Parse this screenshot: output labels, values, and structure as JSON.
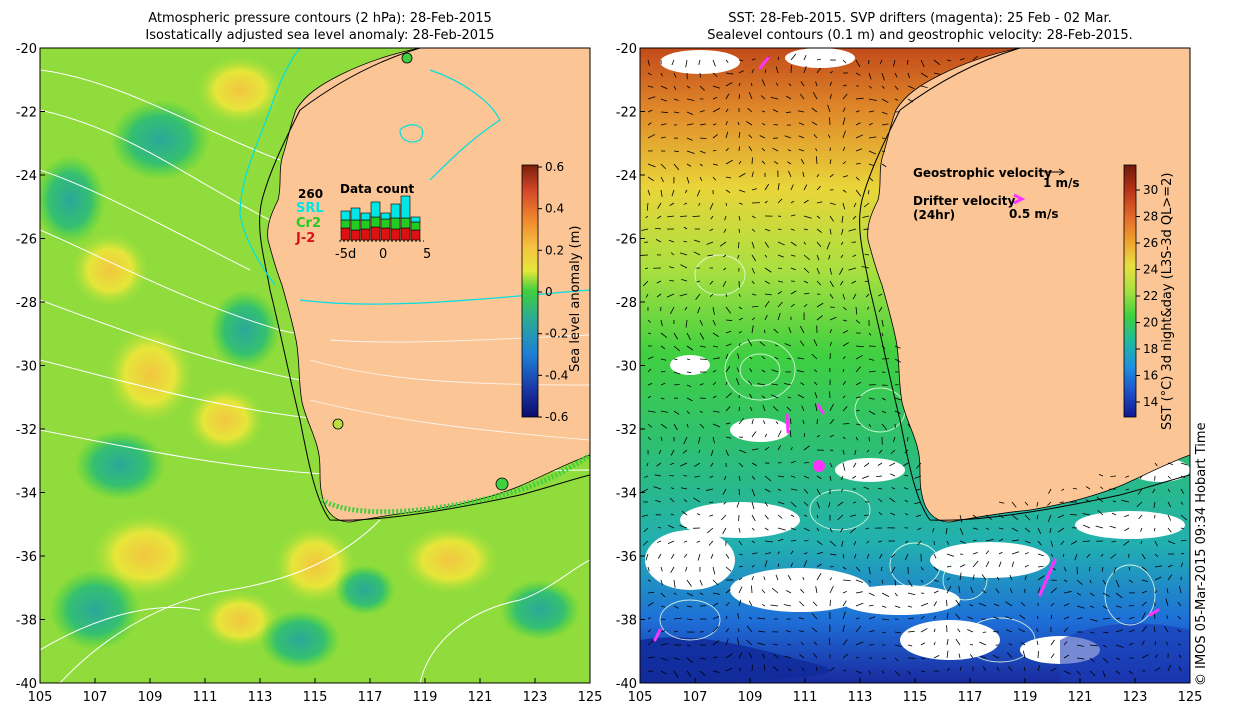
{
  "left_panel": {
    "title_line1": "Atmospheric pressure contours (2 hPa): 28-Feb-2015",
    "title_line2": "Isostatically adjusted sea level anomaly: 28-Feb-2015",
    "x_ticks": [
      "105",
      "107",
      "109",
      "111",
      "113",
      "115",
      "117",
      "119",
      "121",
      "123",
      "125"
    ],
    "y_ticks": [
      "-20",
      "-22",
      "-24",
      "-26",
      "-28",
      "-30",
      "-32",
      "-34",
      "-36",
      "-38",
      "-40"
    ],
    "colorbar": {
      "label": "Sea level anomaly (m)",
      "ticks": [
        "0.6",
        "0.4",
        "0.2",
        "0",
        "-0.2",
        "-0.4",
        "-0.6"
      ],
      "colors": [
        "#7a1f0a",
        "#d2472b",
        "#f08a2e",
        "#f5c542",
        "#e6e63a",
        "#a6e03a",
        "#3fcf3f",
        "#2aa89a",
        "#1e7fd6",
        "#1b3ca8",
        "#0b0b6b"
      ]
    },
    "inset": {
      "count": "260",
      "title": "Data count",
      "satellites": [
        {
          "label": "SRL",
          "color": "#00e5e5"
        },
        {
          "label": "Cr2",
          "color": "#22cc22"
        },
        {
          "label": "J-2",
          "color": "#dd1111"
        }
      ],
      "x_ticks": [
        "-5d",
        "0",
        "5"
      ]
    }
  },
  "right_panel": {
    "title_line1": "SST: 28-Feb-2015. SVP drifters (magenta): 25 Feb - 02 Mar.",
    "title_line2": "Sealevel contours (0.1 m) and geostrophic velocity: 28-Feb-2015.",
    "x_ticks": [
      "105",
      "107",
      "109",
      "111",
      "113",
      "115",
      "117",
      "119",
      "121",
      "123",
      "125"
    ],
    "y_ticks": [
      "-20",
      "-22",
      "-24",
      "-26",
      "-28",
      "-30",
      "-32",
      "-34",
      "-36",
      "-38",
      "-40"
    ],
    "legend": {
      "geo_label": "Geostrophic velocity",
      "geo_scale": "1 m/s",
      "drifter_label": "Drifter velocity",
      "drifter_sub": "(24hr)",
      "drifter_scale": "0.5 m/s",
      "drifter_color": "#ff33ff"
    },
    "colorbar": {
      "label": "SST (°C) 3d night&day (L3S-3d QL>=2)",
      "ticks": [
        "30",
        "28",
        "26",
        "24",
        "22",
        "20",
        "18",
        "16",
        "14"
      ],
      "colors": [
        "#6e1a0a",
        "#b8331a",
        "#e0662a",
        "#f0a030",
        "#e8e040",
        "#a8e040",
        "#40d040",
        "#20b8a0",
        "#1e90e0",
        "#1e50c8",
        "#101890"
      ]
    }
  },
  "credit": "© IMOS 05-Mar-2015 09:34 Hobart Time",
  "land_color": "#fbc596"
}
